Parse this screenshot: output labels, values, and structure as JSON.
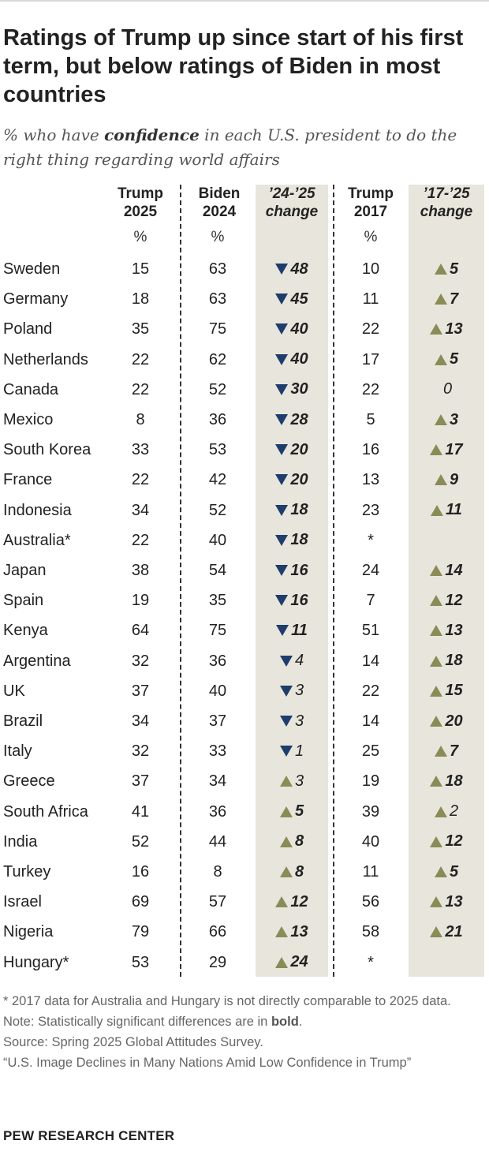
{
  "title": "Ratings of Trump up since start of his first term, but below ratings of Biden in most countries",
  "subtitle_pre": "% who have ",
  "subtitle_bold": "confidence",
  "subtitle_post": " in each U.S. president to do the right thing regarding world affairs",
  "headers": {
    "trump2025": [
      "Trump",
      "2025"
    ],
    "biden2024": [
      "Biden",
      "2024"
    ],
    "change2425": [
      "’24-’25",
      "change"
    ],
    "trump2017": [
      "Trump",
      "2017"
    ],
    "change1725": [
      "’17-’25",
      "change"
    ]
  },
  "pct_sign": "%",
  "colors": {
    "down": "#1f3d6c",
    "up": "#8b8b57",
    "shade": "#e8e6dc"
  },
  "chart_data": {
    "type": "table",
    "columns": [
      "Trump 2025",
      "Biden 2024",
      "’24-’25 change",
      "Trump 2017",
      "’17-’25 change"
    ],
    "rows": [
      {
        "country": "Sweden",
        "trump2025": "15",
        "biden2024": "63",
        "c1": {
          "dir": "down",
          "val": "48",
          "bold": true
        },
        "trump2017": "10",
        "c2": {
          "dir": "up",
          "val": "5",
          "bold": true
        }
      },
      {
        "country": "Germany",
        "trump2025": "18",
        "biden2024": "63",
        "c1": {
          "dir": "down",
          "val": "45",
          "bold": true
        },
        "trump2017": "11",
        "c2": {
          "dir": "up",
          "val": "7",
          "bold": true
        }
      },
      {
        "country": "Poland",
        "trump2025": "35",
        "biden2024": "75",
        "c1": {
          "dir": "down",
          "val": "40",
          "bold": true
        },
        "trump2017": "22",
        "c2": {
          "dir": "up",
          "val": "13",
          "bold": true
        }
      },
      {
        "country": "Netherlands",
        "trump2025": "22",
        "biden2024": "62",
        "c1": {
          "dir": "down",
          "val": "40",
          "bold": true
        },
        "trump2017": "17",
        "c2": {
          "dir": "up",
          "val": "5",
          "bold": true
        }
      },
      {
        "country": "Canada",
        "trump2025": "22",
        "biden2024": "52",
        "c1": {
          "dir": "down",
          "val": "30",
          "bold": true
        },
        "trump2017": "22",
        "c2": {
          "dir": "none",
          "val": "0",
          "bold": false
        }
      },
      {
        "country": "Mexico",
        "trump2025": "8",
        "biden2024": "36",
        "c1": {
          "dir": "down",
          "val": "28",
          "bold": true
        },
        "trump2017": "5",
        "c2": {
          "dir": "up",
          "val": "3",
          "bold": true
        }
      },
      {
        "country": "South Korea",
        "trump2025": "33",
        "biden2024": "53",
        "c1": {
          "dir": "down",
          "val": "20",
          "bold": true
        },
        "trump2017": "16",
        "c2": {
          "dir": "up",
          "val": "17",
          "bold": true
        }
      },
      {
        "country": "France",
        "trump2025": "22",
        "biden2024": "42",
        "c1": {
          "dir": "down",
          "val": "20",
          "bold": true
        },
        "trump2017": "13",
        "c2": {
          "dir": "up",
          "val": "9",
          "bold": true
        }
      },
      {
        "country": "Indonesia",
        "trump2025": "34",
        "biden2024": "52",
        "c1": {
          "dir": "down",
          "val": "18",
          "bold": true
        },
        "trump2017": "23",
        "c2": {
          "dir": "up",
          "val": "11",
          "bold": true
        }
      },
      {
        "country": "Australia*",
        "trump2025": "22",
        "biden2024": "40",
        "c1": {
          "dir": "down",
          "val": "18",
          "bold": true
        },
        "trump2017": "*",
        "c2": null
      },
      {
        "country": "Japan",
        "trump2025": "38",
        "biden2024": "54",
        "c1": {
          "dir": "down",
          "val": "16",
          "bold": true
        },
        "trump2017": "24",
        "c2": {
          "dir": "up",
          "val": "14",
          "bold": true
        }
      },
      {
        "country": "Spain",
        "trump2025": "19",
        "biden2024": "35",
        "c1": {
          "dir": "down",
          "val": "16",
          "bold": true
        },
        "trump2017": "7",
        "c2": {
          "dir": "up",
          "val": "12",
          "bold": true
        }
      },
      {
        "country": "Kenya",
        "trump2025": "64",
        "biden2024": "75",
        "c1": {
          "dir": "down",
          "val": "11",
          "bold": true
        },
        "trump2017": "51",
        "c2": {
          "dir": "up",
          "val": "13",
          "bold": true
        }
      },
      {
        "country": "Argentina",
        "trump2025": "32",
        "biden2024": "36",
        "c1": {
          "dir": "down",
          "val": "4",
          "bold": false
        },
        "trump2017": "14",
        "c2": {
          "dir": "up",
          "val": "18",
          "bold": true
        }
      },
      {
        "country": "UK",
        "trump2025": "37",
        "biden2024": "40",
        "c1": {
          "dir": "down",
          "val": "3",
          "bold": false
        },
        "trump2017": "22",
        "c2": {
          "dir": "up",
          "val": "15",
          "bold": true
        }
      },
      {
        "country": "Brazil",
        "trump2025": "34",
        "biden2024": "37",
        "c1": {
          "dir": "down",
          "val": "3",
          "bold": false
        },
        "trump2017": "14",
        "c2": {
          "dir": "up",
          "val": "20",
          "bold": true
        }
      },
      {
        "country": "Italy",
        "trump2025": "32",
        "biden2024": "33",
        "c1": {
          "dir": "down",
          "val": "1",
          "bold": false
        },
        "trump2017": "25",
        "c2": {
          "dir": "up",
          "val": "7",
          "bold": true
        }
      },
      {
        "country": "Greece",
        "trump2025": "37",
        "biden2024": "34",
        "c1": {
          "dir": "up",
          "val": "3",
          "bold": false
        },
        "trump2017": "19",
        "c2": {
          "dir": "up",
          "val": "18",
          "bold": true
        }
      },
      {
        "country": "South Africa",
        "trump2025": "41",
        "biden2024": "36",
        "c1": {
          "dir": "up",
          "val": "5",
          "bold": true
        },
        "trump2017": "39",
        "c2": {
          "dir": "up",
          "val": "2",
          "bold": false
        }
      },
      {
        "country": "India",
        "trump2025": "52",
        "biden2024": "44",
        "c1": {
          "dir": "up",
          "val": "8",
          "bold": true
        },
        "trump2017": "40",
        "c2": {
          "dir": "up",
          "val": "12",
          "bold": true
        }
      },
      {
        "country": "Turkey",
        "trump2025": "16",
        "biden2024": "8",
        "c1": {
          "dir": "up",
          "val": "8",
          "bold": true
        },
        "trump2017": "11",
        "c2": {
          "dir": "up",
          "val": "5",
          "bold": true
        }
      },
      {
        "country": "Israel",
        "trump2025": "69",
        "biden2024": "57",
        "c1": {
          "dir": "up",
          "val": "12",
          "bold": true
        },
        "trump2017": "56",
        "c2": {
          "dir": "up",
          "val": "13",
          "bold": true
        }
      },
      {
        "country": "Nigeria",
        "trump2025": "79",
        "biden2024": "66",
        "c1": {
          "dir": "up",
          "val": "13",
          "bold": true
        },
        "trump2017": "58",
        "c2": {
          "dir": "up",
          "val": "21",
          "bold": true
        }
      },
      {
        "country": "Hungary*",
        "trump2025": "53",
        "biden2024": "29",
        "c1": {
          "dir": "up",
          "val": "24",
          "bold": true
        },
        "trump2017": "*",
        "c2": null
      }
    ]
  },
  "notes": {
    "footnote": "* 2017 data for Australia and Hungary is not directly comparable to 2025 data.",
    "note_pre": "Note: Statistically significant differences are in ",
    "note_bold": "bold",
    "note_post": ".",
    "source": "Source: Spring 2025 Global Attitudes Survey.",
    "report": "“U.S. Image Declines in Many Nations Amid Low Confidence in Trump”"
  },
  "brand": "PEW RESEARCH CENTER"
}
